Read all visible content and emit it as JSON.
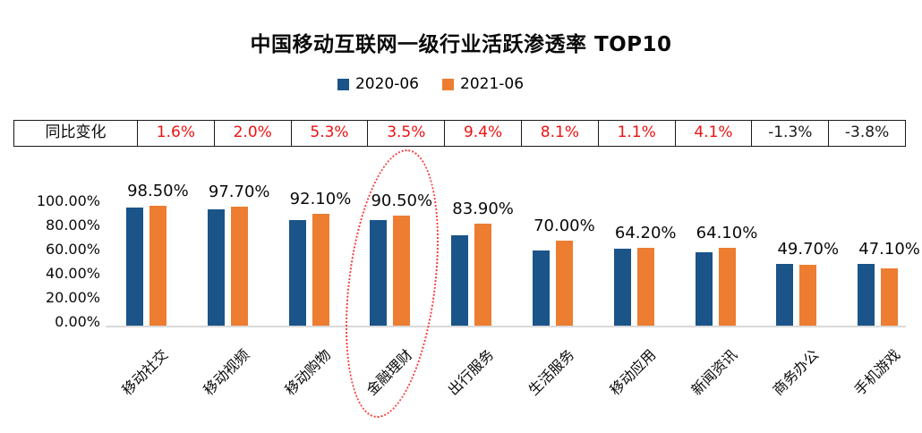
{
  "title": "中国移动互联网一级行业活跃渗透率 TOP10",
  "legend": [
    {
      "label": "2020-06",
      "color": "#1a5488"
    },
    {
      "label": "2021-06",
      "color": "#ed7d31"
    }
  ],
  "yoy_row": {
    "header": "同比变化",
    "values": [
      "1.6%",
      "2.0%",
      "5.3%",
      "3.5%",
      "9.4%",
      "8.1%",
      "1.1%",
      "4.1%",
      "-1.3%",
      "-3.8%"
    ]
  },
  "chart_data": {
    "type": "bar",
    "title": "中国移动互联网一级行业活跃渗透率 TOP10",
    "categories": [
      "移动社交",
      "移动视频",
      "移动购物",
      "金融理财",
      "出行服务",
      "生活服务",
      "移动应用",
      "新闻资讯",
      "商务办公",
      "手机游戏"
    ],
    "series": [
      {
        "name": "2020-06",
        "color": "#1a5488",
        "estimated": true,
        "values": [
          96.9,
          95.7,
          86.8,
          87.0,
          74.5,
          61.9,
          63.1,
          60.0,
          51.0,
          50.9
        ]
      },
      {
        "name": "2021-06",
        "color": "#ed7d31",
        "values": [
          98.5,
          97.7,
          92.1,
          90.5,
          83.9,
          70.0,
          64.2,
          64.1,
          49.7,
          47.1
        ]
      }
    ],
    "data_labels": [
      "98.50%",
      "97.70%",
      "92.10%",
      "90.50%",
      "83.90%",
      "70.00%",
      "64.20%",
      "64.10%",
      "49.70%",
      "47.10%"
    ],
    "yticks": [
      {
        "label": "100.00%",
        "value": 100
      },
      {
        "label": "80.00%",
        "value": 80
      },
      {
        "label": "60.00%",
        "value": 60
      },
      {
        "label": "40.00%",
        "value": 40
      },
      {
        "label": "20.00%",
        "value": 20
      },
      {
        "label": "0.00%",
        "value": 0
      }
    ],
    "ylim": [
      0,
      100
    ],
    "grid": false,
    "legend_position": "top",
    "annotation": {
      "shape": "red-dotted-ellipse",
      "around_category": "金融理财",
      "category_index": 3
    }
  },
  "colors": {
    "blue": "#1a5488",
    "orange": "#ed7d31",
    "positive_red": "#ee1111",
    "negative_black": "#1a1a1a",
    "axis_line": "#d9d9d9",
    "annotation_red": "#f83c3c",
    "table_border": "#1a1a1a"
  }
}
